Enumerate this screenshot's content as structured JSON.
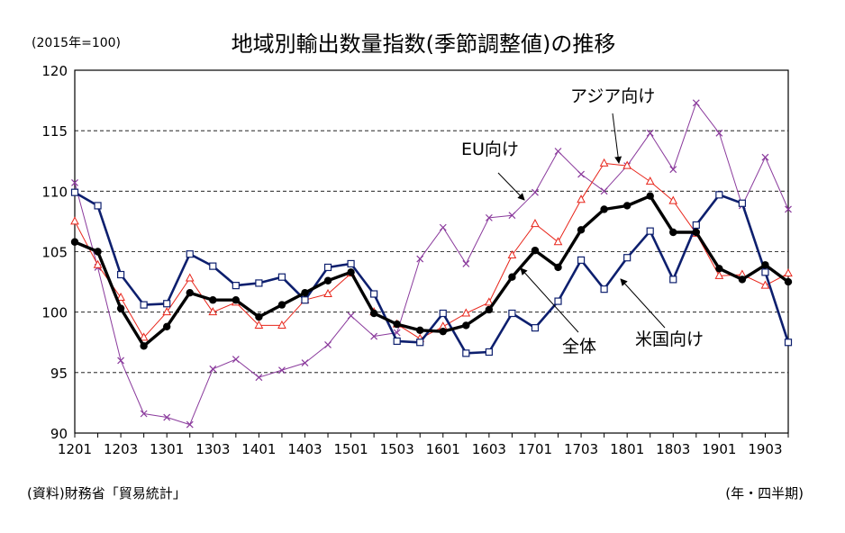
{
  "chart_data": {
    "type": "line",
    "title": "地域別輸出数量指数(季節調整値)の推移",
    "unit_note": "(2015年=100)",
    "source": "(資料)財務省「貿易統計」",
    "xlabel": "(年・四半期)",
    "ylabel": "",
    "ylim": [
      90,
      120
    ],
    "yticks": [
      90,
      95,
      100,
      105,
      110,
      115,
      120
    ],
    "xticks": [
      "1201",
      "1203",
      "1301",
      "1303",
      "1401",
      "1403",
      "1501",
      "1503",
      "1601",
      "1603",
      "1701",
      "1703",
      "1801",
      "1803",
      "1901",
      "1903"
    ],
    "grid": "horizontal dashed",
    "x": [
      "1201",
      "1202",
      "1203",
      "1204",
      "1301",
      "1302",
      "1303",
      "1304",
      "1401",
      "1402",
      "1403",
      "1404",
      "1501",
      "1502",
      "1503",
      "1504",
      "1601",
      "1602",
      "1603",
      "1604",
      "1701",
      "1702",
      "1703",
      "1704",
      "1801",
      "1802",
      "1803",
      "1804",
      "1901",
      "1902",
      "1903",
      "1904"
    ],
    "series": [
      {
        "name": "全体",
        "color": "#000000",
        "marker": "filled-circle",
        "values": [
          105.8,
          105.0,
          100.3,
          97.2,
          98.8,
          101.6,
          101.0,
          101.0,
          99.6,
          100.6,
          101.6,
          102.6,
          103.3,
          99.9,
          99.0,
          98.5,
          98.4,
          98.9,
          100.2,
          102.9,
          105.1,
          103.7,
          106.8,
          108.5,
          108.8,
          109.6,
          106.6,
          106.6,
          103.6,
          102.7,
          103.9,
          102.5
        ]
      },
      {
        "name": "米国向け",
        "color": "#0d1f6e",
        "marker": "open-square",
        "values": [
          109.9,
          108.8,
          103.1,
          100.6,
          100.7,
          104.8,
          103.8,
          102.2,
          102.4,
          102.9,
          101.0,
          103.7,
          104.0,
          101.5,
          97.6,
          97.5,
          99.9,
          96.6,
          96.7,
          99.9,
          98.7,
          100.9,
          104.3,
          101.9,
          104.5,
          106.7,
          102.7,
          107.2,
          109.7,
          109.0,
          103.3,
          97.5
        ]
      },
      {
        "name": "アジア向け",
        "color": "#e8251a",
        "marker": "open-triangle",
        "values": [
          107.5,
          103.9,
          101.2,
          97.9,
          100.0,
          102.8,
          100.0,
          100.8,
          98.9,
          98.9,
          101.0,
          101.5,
          103.2,
          100.0,
          99.0,
          97.8,
          98.8,
          99.9,
          100.8,
          104.7,
          107.3,
          105.8,
          109.3,
          112.3,
          112.1,
          110.8,
          109.2,
          106.5,
          103.0,
          103.1,
          102.2,
          103.2
        ]
      },
      {
        "name": "EU向け",
        "color": "#8a3a9c",
        "marker": "x",
        "values": [
          110.7,
          103.7,
          96.0,
          91.6,
          91.3,
          90.7,
          95.3,
          96.1,
          94.6,
          95.2,
          95.8,
          97.3,
          99.7,
          98.0,
          98.3,
          104.4,
          107.0,
          104.0,
          107.8,
          108.0,
          109.9,
          113.3,
          111.4,
          110.0,
          112.1,
          114.8,
          111.8,
          117.3,
          114.8,
          108.8,
          112.8,
          108.5
        ]
      }
    ],
    "annotations": [
      {
        "text": "アジア向け",
        "series": "アジア向け"
      },
      {
        "text": "EU向け",
        "series": "EU向け"
      },
      {
        "text": "全体",
        "series": "全体"
      },
      {
        "text": "米国向け",
        "series": "米国向け"
      }
    ]
  }
}
